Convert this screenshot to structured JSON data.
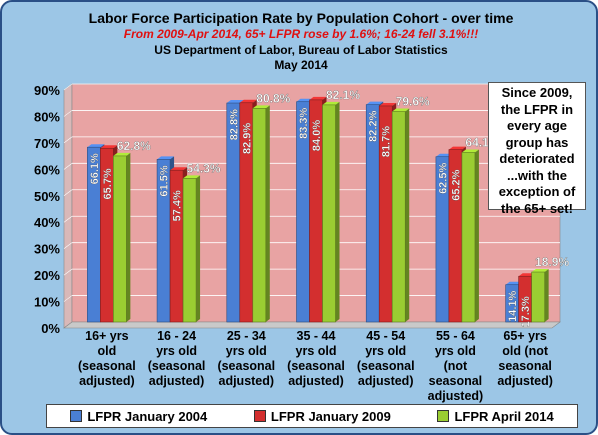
{
  "header": {
    "title": "Labor Force Participation Rate by Population Cohort - over time",
    "subtitle": "From 2009-Apr 2014, 65+ LFPR rose by 1.6%; 16-24 fell 3.1%!!!",
    "source": "US Department  of Labor, Bureau of Labor Statistics",
    "date": "May 2014"
  },
  "annotation": "Since 2009,\nthe LFPR in\nevery age\ngroup has\ndeteriorated\n...with the\nexception of\nthe 65+ set!",
  "chart_data": {
    "type": "bar",
    "categories": [
      [
        "16+ yrs",
        "old",
        "(seasonal",
        "adjusted)"
      ],
      [
        "16 - 24",
        "yrs old",
        "(seasonal",
        "adjusted)"
      ],
      [
        "25 - 34",
        "yrs old",
        "(seasonal",
        "adjusted)"
      ],
      [
        "35 - 44",
        "yrs old",
        "(seasonal",
        "adjusted)"
      ],
      [
        "45 - 54",
        "yrs old",
        "(seasonal",
        "adjusted)"
      ],
      [
        "55 - 64",
        "yrs old",
        "(not",
        "seasonal",
        "adjusted)"
      ],
      [
        "65+ yrs",
        "old (not",
        "seasonal",
        "adjusted)"
      ]
    ],
    "series": [
      {
        "name": "LFPR January 2004",
        "color": "#4a7fd4",
        "values": [
          66.1,
          61.5,
          82.8,
          83.3,
          82.2,
          62.5,
          14.1
        ],
        "labels": [
          "66.1%",
          "61.5%",
          "82.8%",
          "83.3%",
          "82.2%",
          "62.5%",
          "14.1%"
        ]
      },
      {
        "name": "LFPR January 2009",
        "color": "#d32f2f",
        "values": [
          65.7,
          57.4,
          82.9,
          84.0,
          81.7,
          65.2,
          17.3
        ],
        "labels": [
          "65.7%",
          "57.4%",
          "82.9%",
          "84.0%",
          "81.7%",
          "65.2%",
          "17.3%"
        ]
      },
      {
        "name": "LFPR April 2014",
        "color": "#9acd32",
        "values": [
          62.8,
          54.3,
          80.8,
          82.1,
          79.6,
          64.1,
          18.9
        ],
        "labels": [
          "62.8%",
          "54.3%",
          "80.8%",
          "82.1%",
          "79.6%",
          "64.1%",
          "18.9%"
        ]
      }
    ],
    "yticks": [
      "0%",
      "10%",
      "20%",
      "30%",
      "40%",
      "50%",
      "60%",
      "70%",
      "80%",
      "90%"
    ],
    "ylim": [
      0,
      90
    ],
    "grid": true,
    "legend_position": "bottom"
  }
}
